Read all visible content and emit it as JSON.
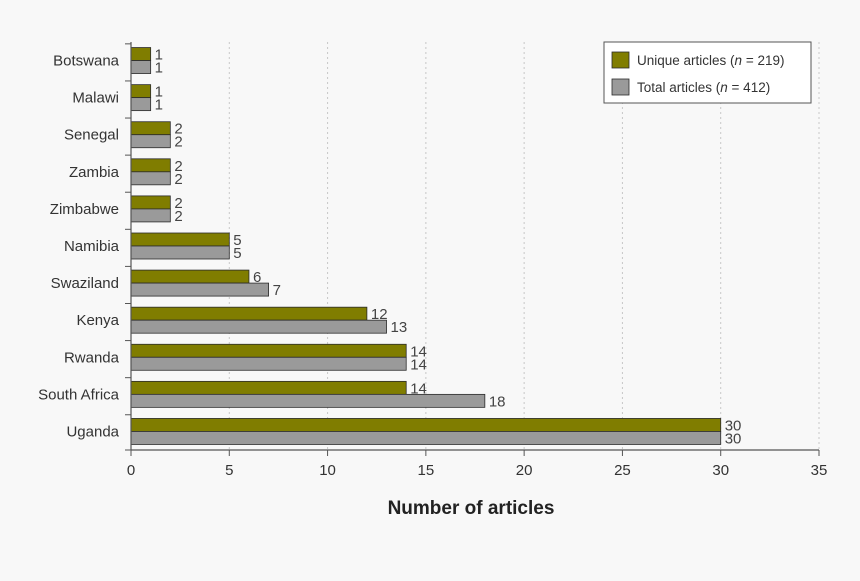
{
  "chart_data": {
    "type": "bar",
    "orientation": "horizontal",
    "categories": [
      "Botswana",
      "Malawi",
      "Senegal",
      "Zambia",
      "Zimbabwe",
      "Namibia",
      "Swaziland",
      "Kenya",
      "Rwanda",
      "South Africa",
      "Uganda"
    ],
    "series": [
      {
        "name": "Unique articles (n = 219)",
        "name_prefix": "Unique articles (",
        "name_n": "n",
        "name_suffix": " = 219)",
        "color": "#807d00",
        "values": [
          1,
          1,
          2,
          2,
          2,
          5,
          6,
          12,
          14,
          14,
          30
        ]
      },
      {
        "name": "Total articles (n = 412)",
        "name_prefix": "Total articles (",
        "name_n": "n",
        "name_suffix": " = 412)",
        "color": "#9a9a9a",
        "values": [
          1,
          1,
          2,
          2,
          2,
          5,
          7,
          13,
          14,
          18,
          30
        ]
      }
    ],
    "xlabel": "Number of articles",
    "ylabel": "",
    "xlim": [
      0,
      35
    ],
    "xticks": [
      0,
      5,
      10,
      15,
      20,
      25,
      30,
      35
    ],
    "grid": "vertical dotted",
    "legend_position": "top-right"
  }
}
